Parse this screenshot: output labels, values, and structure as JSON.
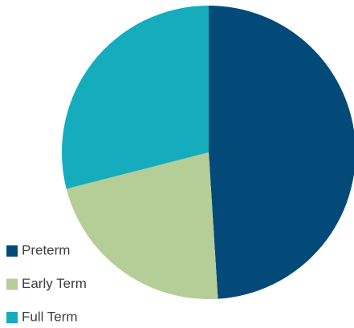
{
  "chart_data": {
    "type": "pie",
    "categories": [
      "Preterm",
      "Early Term",
      "Full Term"
    ],
    "values": [
      49,
      22,
      29
    ],
    "colors": [
      "#034a78",
      "#b5cd97",
      "#15acbd"
    ],
    "legend": "bottom-left"
  }
}
